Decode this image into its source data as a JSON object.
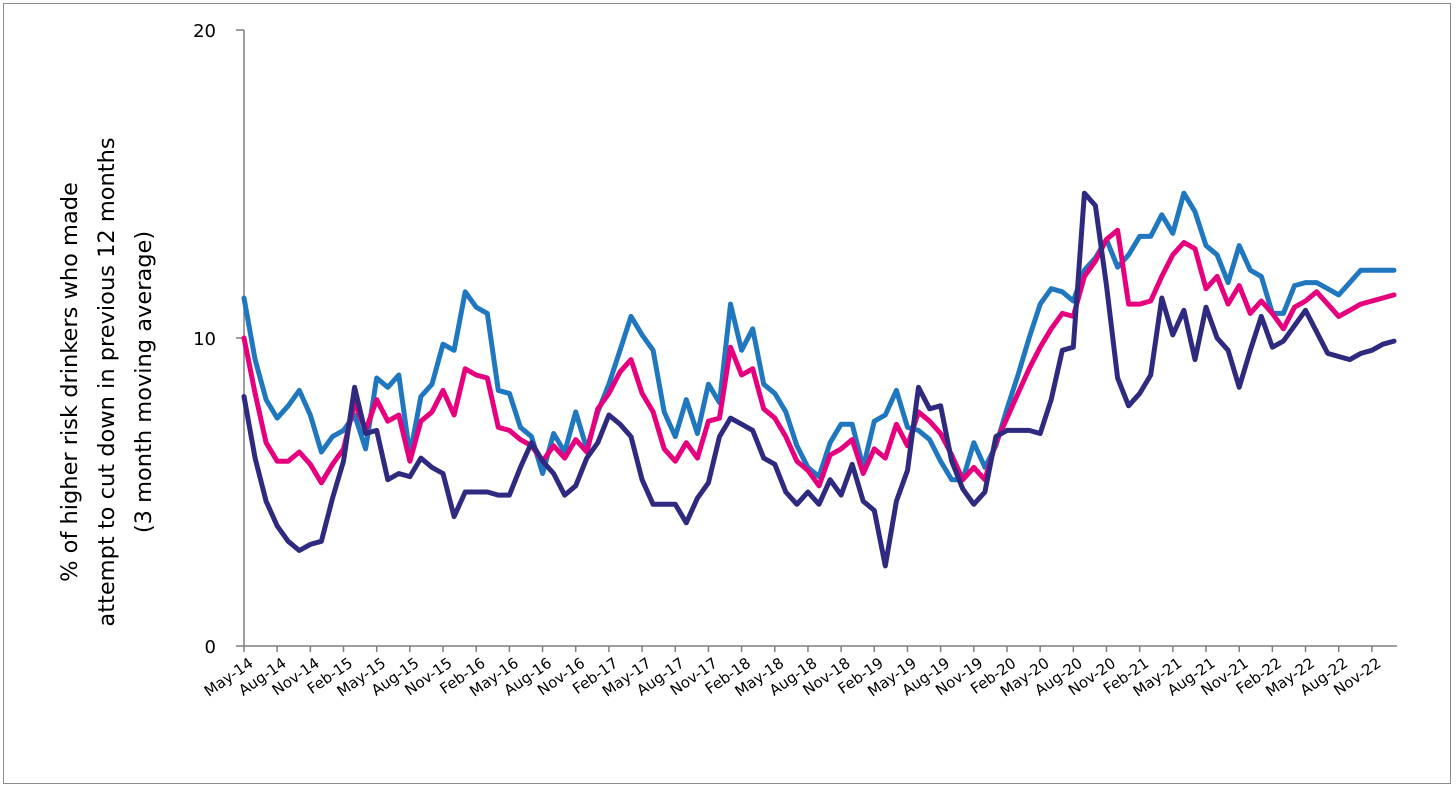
{
  "chart_data": {
    "type": "line",
    "title": "",
    "ylabel_lines": [
      "% of higher risk drinkers who made",
      "attempt to cut down in previous 12 months",
      "(3 month moving average)"
    ],
    "xlabel": "",
    "ylim": [
      0,
      20
    ],
    "yticks": [
      0,
      10,
      20
    ],
    "grid": false,
    "legend": "none",
    "x_start": "May-14",
    "x_tick_labels": [
      "May-14",
      "Aug-14",
      "Nov-14",
      "Feb-15",
      "May-15",
      "Aug-15",
      "Nov-15",
      "Feb-16",
      "May-16",
      "Aug-16",
      "Nov-16",
      "Feb-17",
      "May-17",
      "Aug-17",
      "Nov-17",
      "Feb-18",
      "May-18",
      "Aug-18",
      "Nov-18",
      "Feb-19",
      "May-19",
      "Aug-19",
      "Nov-19",
      "Feb-20",
      "May-20",
      "Aug-20",
      "Nov-20",
      "Feb-21",
      "May-21",
      "Aug-21",
      "Nov-21",
      "Feb-22",
      "May-22",
      "Aug-22",
      "Nov-22"
    ],
    "series": [
      {
        "color": "#1F77BF",
        "values": [
          11.3,
          9.3,
          8.0,
          7.4,
          7.8,
          8.3,
          7.5,
          6.3,
          6.8,
          7.0,
          7.5,
          6.4,
          8.7,
          8.4,
          8.8,
          6.2,
          8.1,
          8.5,
          9.8,
          9.6,
          11.5,
          11.0,
          10.8,
          8.3,
          8.2,
          7.1,
          6.8,
          5.6,
          6.9,
          6.3,
          7.6,
          6.4,
          7.6,
          8.5,
          9.6,
          10.7,
          10.1,
          9.6,
          7.6,
          6.8,
          8.0,
          6.9,
          8.5,
          7.9,
          11.1,
          9.6,
          10.3,
          8.5,
          8.2,
          7.6,
          6.5,
          5.8,
          5.5,
          6.6,
          7.2,
          7.2,
          5.8,
          7.3,
          7.5,
          8.3,
          7.1,
          7.0,
          6.7,
          6.0,
          5.4,
          5.4,
          6.6,
          5.8,
          6.5,
          7.7,
          8.8,
          10.0,
          11.1,
          11.6,
          11.5,
          11.2,
          12.2,
          12.6,
          13.2,
          12.3,
          12.7,
          13.3,
          13.3,
          14.0,
          13.4,
          14.7,
          14.1,
          13.0,
          12.7,
          11.8,
          13.0,
          12.2,
          12.0,
          10.8,
          10.8,
          11.7,
          11.8,
          11.8,
          11.6,
          11.4,
          11.8,
          12.2,
          12.2,
          12.2,
          12.2
        ],
        "data_name": "series-line-light-blue"
      },
      {
        "color": "#E6007E",
        "values": [
          10.0,
          8.2,
          6.6,
          6.0,
          6.0,
          6.3,
          5.9,
          5.3,
          5.9,
          6.4,
          7.9,
          7.0,
          8.0,
          7.3,
          7.5,
          6.0,
          7.3,
          7.6,
          8.3,
          7.5,
          9.0,
          8.8,
          8.7,
          7.1,
          7.0,
          6.7,
          6.5,
          6.0,
          6.5,
          6.1,
          6.7,
          6.3,
          7.7,
          8.2,
          8.9,
          9.3,
          8.2,
          7.6,
          6.4,
          6.0,
          6.6,
          6.1,
          7.3,
          7.4,
          9.7,
          8.8,
          9.0,
          7.7,
          7.4,
          6.8,
          6.0,
          5.7,
          5.2,
          6.2,
          6.4,
          6.7,
          5.6,
          6.4,
          6.1,
          7.2,
          6.5,
          7.6,
          7.3,
          6.9,
          6.2,
          5.4,
          5.8,
          5.4,
          6.6,
          7.4,
          8.2,
          9.0,
          9.7,
          10.3,
          10.8,
          10.7,
          12.0,
          12.5,
          13.2,
          13.5,
          11.1,
          11.1,
          11.2,
          12.0,
          12.7,
          13.1,
          12.9,
          11.6,
          12.0,
          11.1,
          11.7,
          10.8,
          11.2,
          10.8,
          10.3,
          11.0,
          11.2,
          11.5,
          11.1,
          10.7,
          10.9,
          11.1,
          11.2,
          11.3,
          11.4
        ],
        "data_name": "series-line-magenta"
      },
      {
        "color": "#2D2A80",
        "values": [
          8.1,
          6.1,
          4.7,
          3.9,
          3.4,
          3.1,
          3.3,
          3.4,
          4.8,
          6.0,
          8.4,
          6.9,
          7.0,
          5.4,
          5.6,
          5.5,
          6.1,
          5.8,
          5.6,
          4.2,
          5.0,
          5.0,
          5.0,
          4.9,
          4.9,
          5.8,
          6.6,
          6.0,
          5.6,
          4.9,
          5.2,
          6.1,
          6.6,
          7.5,
          7.2,
          6.8,
          5.4,
          4.6,
          4.6,
          4.6,
          4.0,
          4.8,
          5.3,
          6.8,
          7.4,
          7.2,
          7.0,
          6.1,
          5.9,
          5.0,
          4.6,
          5.0,
          4.6,
          5.4,
          4.9,
          5.9,
          4.7,
          4.4,
          2.6,
          4.7,
          5.7,
          8.4,
          7.7,
          7.8,
          6.0,
          5.1,
          4.6,
          5.0,
          6.8,
          7.0,
          7.0,
          7.0,
          6.9,
          8.0,
          9.6,
          9.7,
          14.7,
          14.3,
          11.7,
          8.7,
          7.8,
          8.2,
          8.8,
          11.3,
          10.1,
          10.9,
          9.3,
          11.0,
          10.0,
          9.6,
          8.4,
          9.6,
          10.7,
          9.7,
          9.9,
          10.4,
          10.9,
          10.2,
          9.5,
          9.4,
          9.3,
          9.5,
          9.6,
          9.8,
          9.9
        ],
        "data_name": "series-line-dark-navy"
      }
    ]
  }
}
